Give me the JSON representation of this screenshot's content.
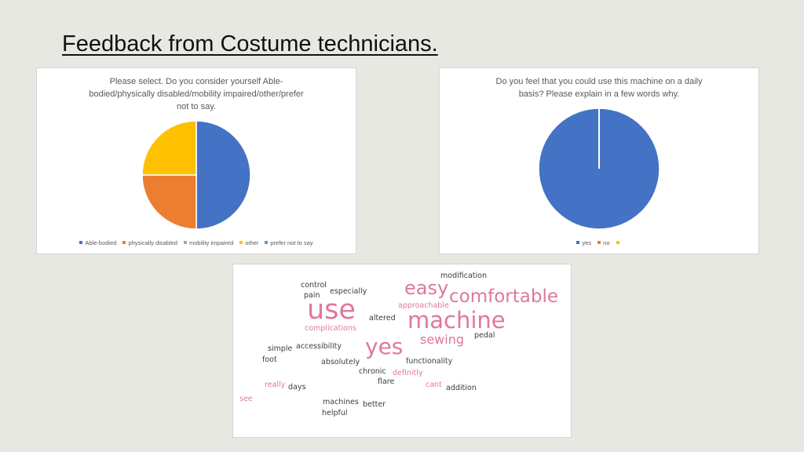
{
  "slide": {
    "title": "Feedback from Costume technicians."
  },
  "chart_data": [
    {
      "type": "pie",
      "title_lines": [
        "Please select. Do you consider yourself Able-",
        "bodied/physically disabled/mobility impaired/other/prefer",
        "not to say."
      ],
      "categories": [
        "Able-bodied",
        "physically disabled",
        "mobility impaired",
        "other",
        "prefer not to say"
      ],
      "values": [
        2,
        1,
        0,
        1,
        0
      ],
      "colors": [
        "#4472c4",
        "#ed7d31",
        "#a5a5a5",
        "#ffc000",
        "#5b9bd5"
      ],
      "legend": "bottom"
    },
    {
      "type": "pie",
      "title_lines": [
        "Do you feel that you could use this machine on a daily",
        "basis? Please explain in a few words why."
      ],
      "categories": [
        "yes",
        "no",
        ""
      ],
      "values": [
        1,
        0,
        0
      ],
      "colors": [
        "#4472c4",
        "#ed7d31",
        "#ffc000"
      ],
      "legend": "bottom"
    }
  ],
  "word_cloud": {
    "pink": "#e0779e",
    "dark": "#3c3c3c",
    "words": [
      {
        "text": "modification",
        "color": "dark"
      },
      {
        "text": "control",
        "color": "dark"
      },
      {
        "text": "especially",
        "color": "dark"
      },
      {
        "text": "pain",
        "color": "dark"
      },
      {
        "text": "easy",
        "color": "pink"
      },
      {
        "text": "comfortable",
        "color": "pink"
      },
      {
        "text": "use",
        "color": "pink"
      },
      {
        "text": "approachable",
        "color": "pink"
      },
      {
        "text": "machine",
        "color": "pink"
      },
      {
        "text": "altered",
        "color": "dark"
      },
      {
        "text": "complications",
        "color": "pink"
      },
      {
        "text": "sewing",
        "color": "pink"
      },
      {
        "text": "pedal",
        "color": "dark"
      },
      {
        "text": "accessibility",
        "color": "dark"
      },
      {
        "text": "simple",
        "color": "dark"
      },
      {
        "text": "yes",
        "color": "pink"
      },
      {
        "text": "foot",
        "color": "dark"
      },
      {
        "text": "absolutely",
        "color": "dark"
      },
      {
        "text": "functionality",
        "color": "dark"
      },
      {
        "text": "chronic",
        "color": "dark"
      },
      {
        "text": "definitly",
        "color": "pink"
      },
      {
        "text": "flare",
        "color": "dark"
      },
      {
        "text": "really",
        "color": "pink"
      },
      {
        "text": "days",
        "color": "dark"
      },
      {
        "text": "cant",
        "color": "pink"
      },
      {
        "text": "addition",
        "color": "dark"
      },
      {
        "text": "see",
        "color": "pink"
      },
      {
        "text": "machines",
        "color": "dark"
      },
      {
        "text": "better",
        "color": "dark"
      },
      {
        "text": "helpful",
        "color": "dark"
      }
    ]
  }
}
